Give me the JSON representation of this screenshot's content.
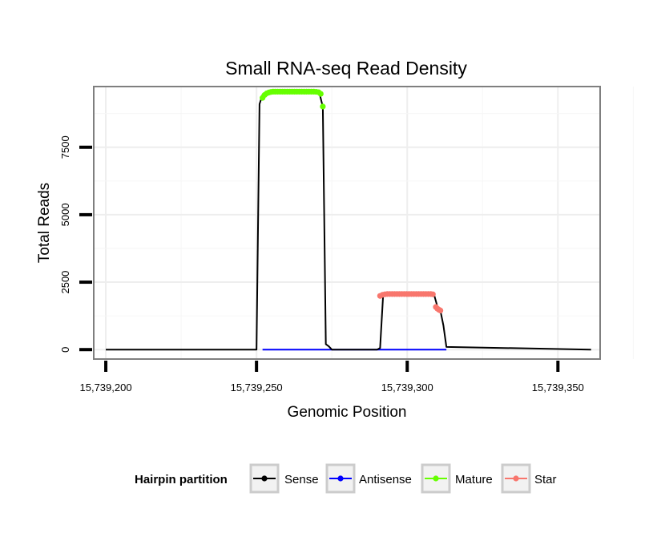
{
  "chart_data": {
    "type": "line",
    "title": "Small RNA-seq Read Density",
    "xlabel": "Genomic Position",
    "ylabel": "Total Reads",
    "xlim": [
      15739196,
      15739364
    ],
    "ylim": [
      -350,
      9750
    ],
    "x_ticks": [
      15739200,
      15739250,
      15739300,
      15739350
    ],
    "x_tick_labels": [
      "15,739,200",
      "15,739,250",
      "15,739,300",
      "15,739,350"
    ],
    "y_ticks": [
      0,
      2500,
      5000,
      7500
    ],
    "y_tick_labels": [
      "0",
      "2500",
      "5000",
      "7500"
    ],
    "grid": true,
    "colors": {
      "sense": "#000000",
      "antisense": "#0000ff",
      "mature": "#66ff00",
      "star": "#f8766d"
    },
    "series": [
      {
        "name": "Sense",
        "key": "sense",
        "style": "line",
        "x": [
          15739200,
          15739250,
          15739251,
          15739252,
          15739254,
          15739270,
          15739271,
          15739272,
          15739273,
          15739274,
          15739275,
          15739290,
          15739291,
          15739292,
          15739294,
          15739308,
          15739309,
          15739310,
          15739311,
          15739312,
          15739313,
          15739361
        ],
        "y": [
          0,
          0,
          9100,
          9450,
          9560,
          9560,
          9450,
          9000,
          200,
          120,
          0,
          0,
          60,
          2000,
          2060,
          2060,
          2000,
          1600,
          1450,
          900,
          100,
          0
        ]
      },
      {
        "name": "Antisense",
        "key": "antisense",
        "style": "line",
        "x": [
          15739252,
          15739313
        ],
        "y": [
          0,
          0
        ]
      },
      {
        "name": "Mature",
        "key": "mature",
        "style": "points",
        "x": [
          15739252,
          15739252.7,
          15739253.4,
          15739254.1,
          15739254.8,
          15739255.5,
          15739256.2,
          15739257,
          15739257.8,
          15739258.6,
          15739259.4,
          15739260.2,
          15739261,
          15739261.8,
          15739262.6,
          15739263.4,
          15739264.2,
          15739265,
          15739265.8,
          15739266.6,
          15739267.4,
          15739268.2,
          15739269,
          15739269.8,
          15739270.6,
          15739271.3,
          15739272
        ],
        "y": [
          9330,
          9440,
          9500,
          9530,
          9550,
          9560,
          9560,
          9560,
          9560,
          9560,
          9560,
          9560,
          9560,
          9560,
          9560,
          9560,
          9560,
          9560,
          9560,
          9560,
          9560,
          9560,
          9560,
          9555,
          9540,
          9480,
          9010
        ]
      },
      {
        "name": "Star",
        "key": "star",
        "style": "points",
        "x": [
          15739291,
          15739291.8,
          15739292.6,
          15739293.4,
          15739294.2,
          15739295,
          15739295.8,
          15739296.6,
          15739297.4,
          15739298.2,
          15739299,
          15739299.8,
          15739300.6,
          15739301.4,
          15739302.2,
          15739303,
          15739303.8,
          15739304.6,
          15739305.4,
          15739306.2,
          15739307,
          15739307.8,
          15739308.5,
          15739309.5,
          15739310,
          15739310.5,
          15739311
        ],
        "y": [
          1990,
          2030,
          2050,
          2060,
          2060,
          2060,
          2060,
          2060,
          2060,
          2060,
          2060,
          2060,
          2060,
          2060,
          2060,
          2060,
          2060,
          2060,
          2060,
          2060,
          2060,
          2060,
          2050,
          1580,
          1520,
          1480,
          1450
        ]
      }
    ],
    "legend": {
      "title": "Hairpin partition",
      "position": "bottom",
      "entries": [
        {
          "key": "sense",
          "label": "Sense"
        },
        {
          "key": "antisense",
          "label": "Antisense"
        },
        {
          "key": "mature",
          "label": "Mature"
        },
        {
          "key": "star",
          "label": "Star"
        }
      ]
    }
  }
}
